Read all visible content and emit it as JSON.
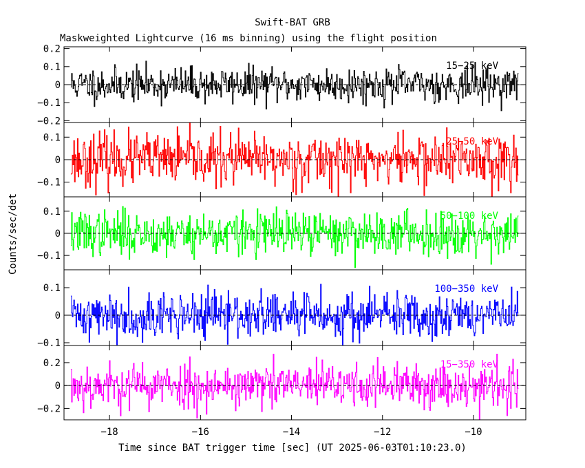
{
  "chart_data": {
    "type": "line",
    "title": "Swift-BAT GRB",
    "subtitle": "Maskweighted Lightcurve (16 ms binning) using the flight position",
    "xlabel": "Time since BAT trigger time [sec] (UT 2025-06-03T01:10:23.0)",
    "ylabel": "Counts/sec/det",
    "xlim": [
      -19.0,
      -8.85
    ],
    "x_ticks": [
      -18,
      -16,
      -14,
      -12,
      -10
    ],
    "x_tick_labels": [
      "−18",
      "−16",
      "−14",
      "−12",
      "−10"
    ],
    "bin_width_s": 0.016,
    "series_range": [
      -18.85,
      -9.0
    ],
    "panels": [
      {
        "name": "15-25 keV",
        "label": "15−25 keV",
        "color": "#000000",
        "ylim": [
          -0.21,
          0.21
        ],
        "y_ticks": [
          -0.2,
          -0.1,
          0,
          0.1,
          0.2
        ],
        "y_tick_labels": [
          "−0.2",
          "−0.1",
          "0",
          "0.1",
          "0.2"
        ],
        "noise_sd": 0.048,
        "seed": 11
      },
      {
        "name": "25-50 keV",
        "label": "25−50 keV",
        "color": "#ff0000",
        "ylim": [
          -0.165,
          0.165
        ],
        "y_ticks": [
          -0.1,
          0,
          0.1
        ],
        "y_tick_labels": [
          "−0.1",
          "0",
          "0.1"
        ],
        "noise_sd": 0.058,
        "seed": 23
      },
      {
        "name": "50-100 keV",
        "label": "50−100 keV",
        "color": "#00ff00",
        "ylim": [
          -0.165,
          0.165
        ],
        "y_ticks": [
          -0.1,
          0,
          0.1
        ],
        "y_tick_labels": [
          "−0.1",
          "0",
          "0.1"
        ],
        "noise_sd": 0.05,
        "seed": 37
      },
      {
        "name": "100-350 keV",
        "label": "100−350 keV",
        "color": "#0000ff",
        "ylim": [
          -0.11,
          0.165
        ],
        "y_ticks": [
          -0.1,
          0,
          0.1
        ],
        "y_tick_labels": [
          "−0.1",
          "0",
          "0.1"
        ],
        "noise_sd": 0.042,
        "seed": 41
      },
      {
        "name": "15-350 keV",
        "label": "15−350 keV",
        "color": "#ff00ff",
        "ylim": [
          -0.3,
          0.35
        ],
        "y_ticks": [
          -0.2,
          0,
          0.2
        ],
        "y_tick_labels": [
          "−0.2",
          "0",
          "0.2"
        ],
        "noise_sd": 0.1,
        "seed": 53
      }
    ]
  }
}
